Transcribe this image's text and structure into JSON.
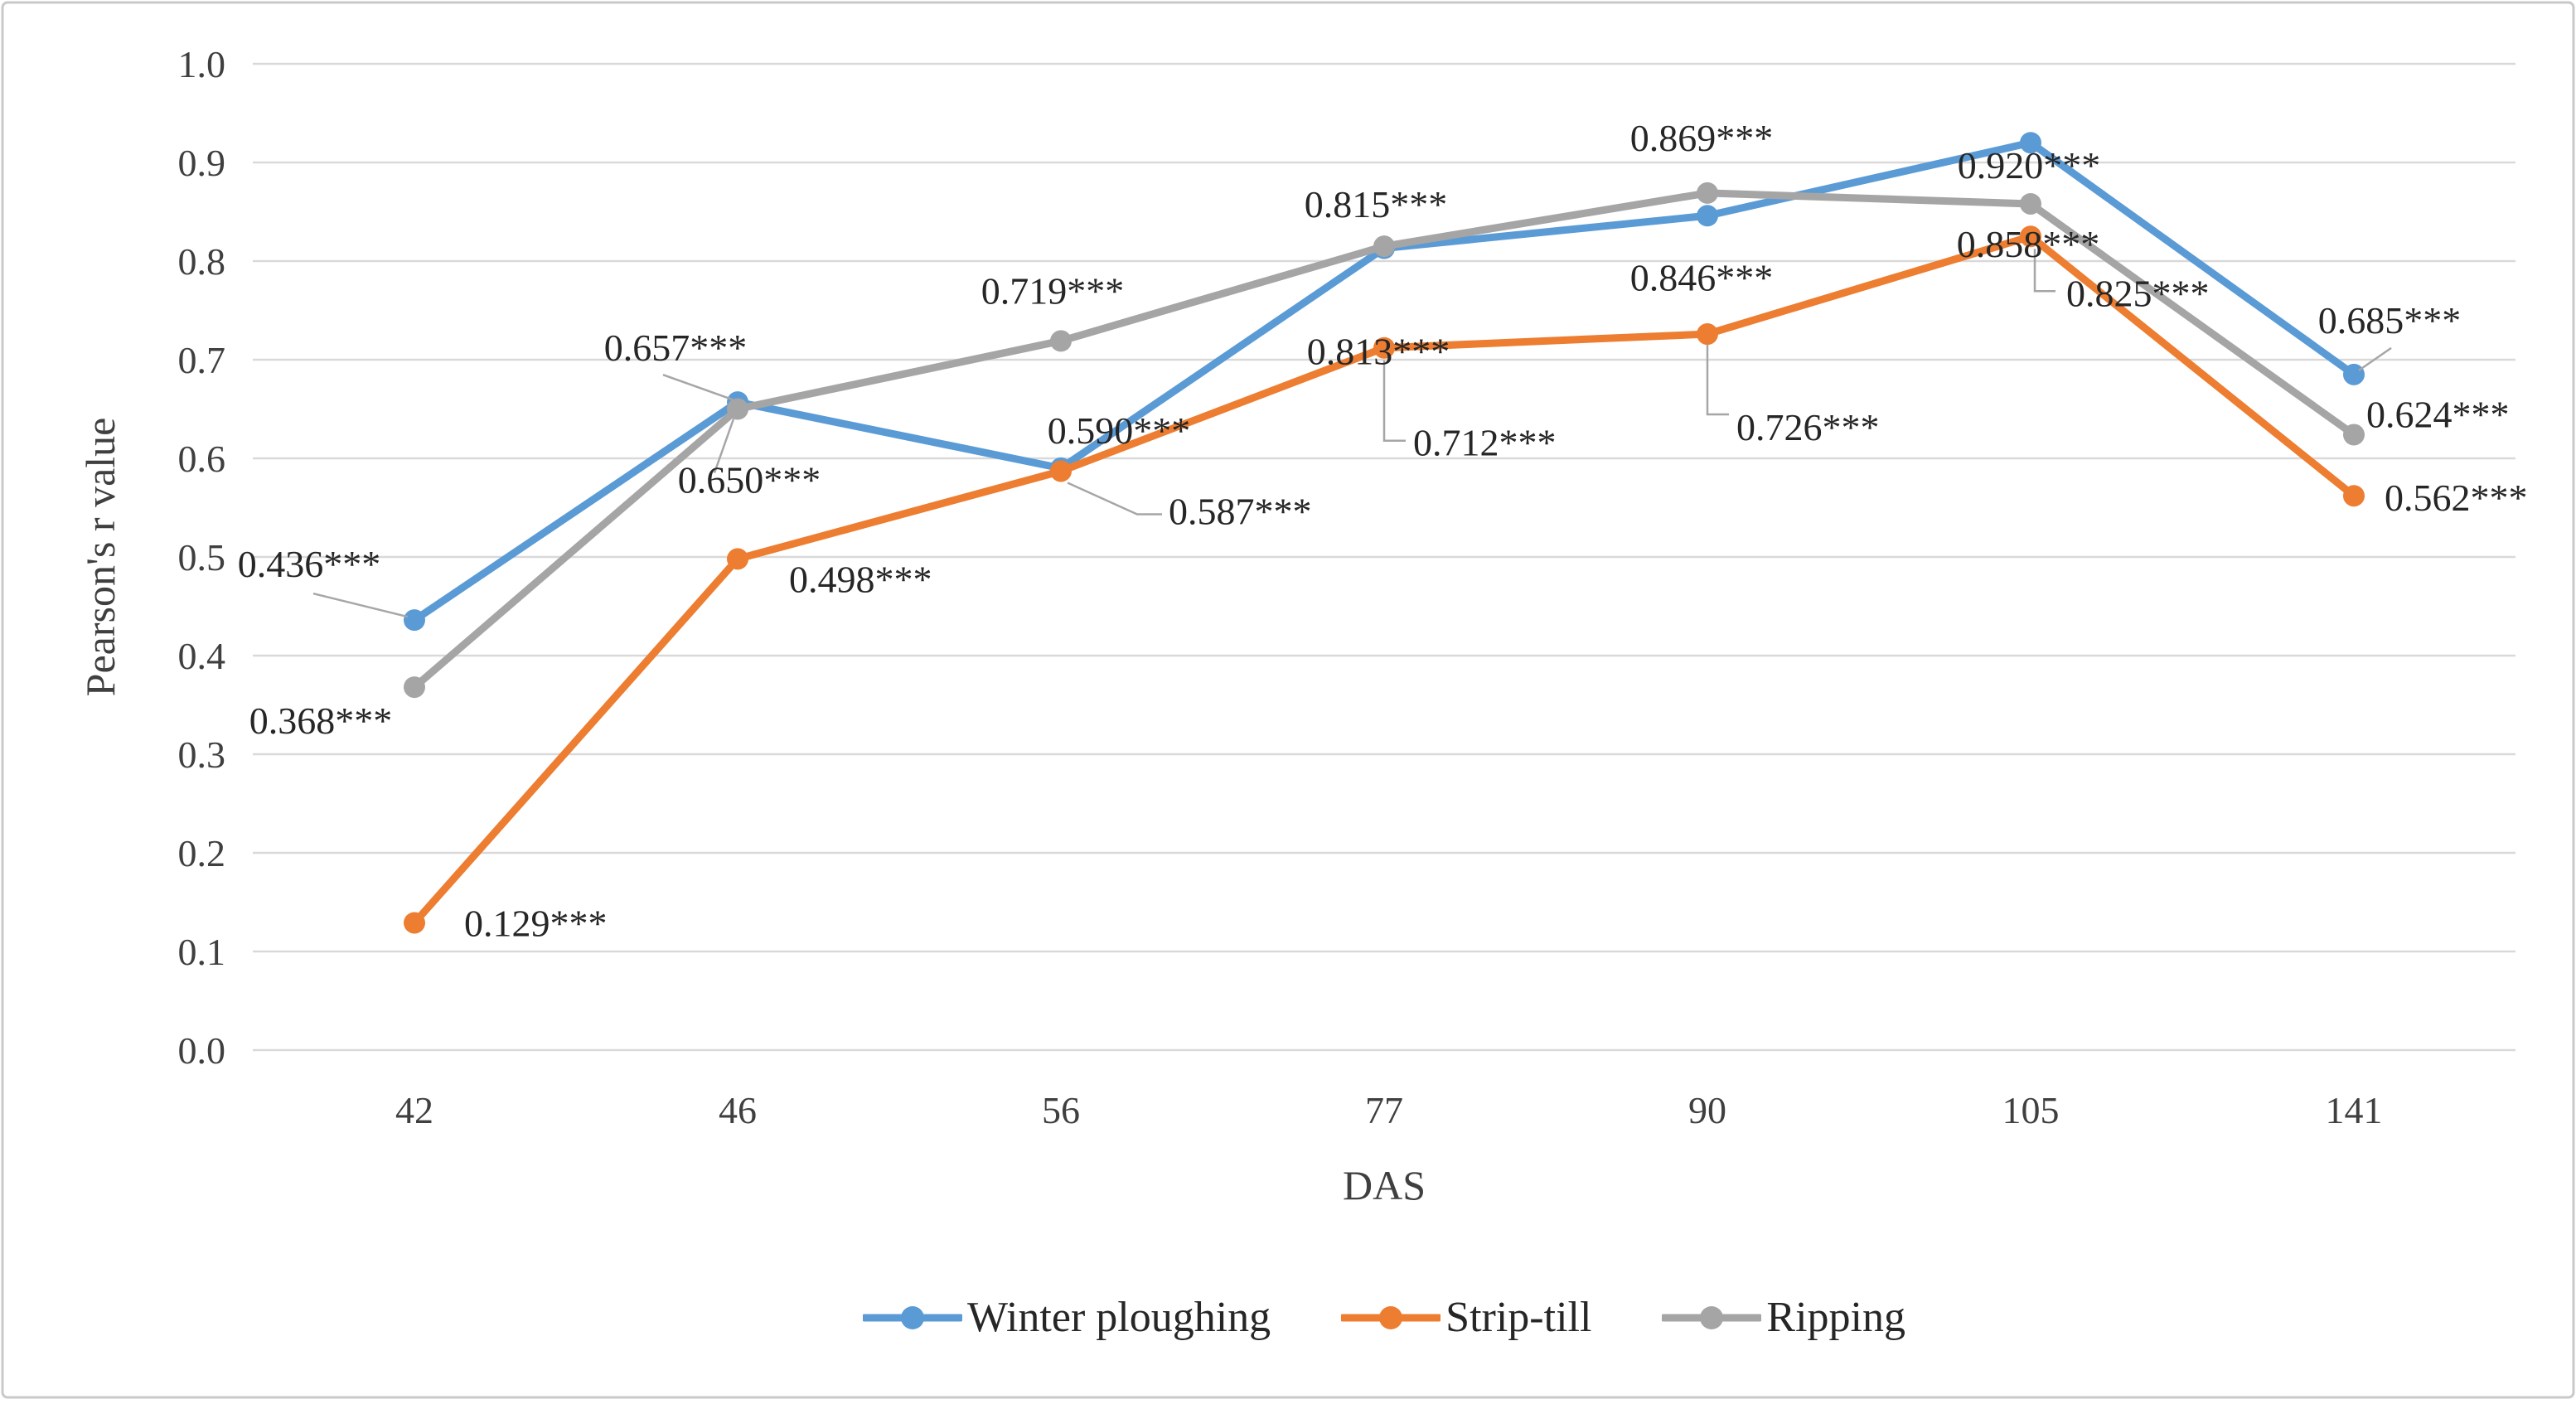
{
  "chart_data": {
    "type": "line",
    "x_categories": [
      "42",
      "46",
      "56",
      "77",
      "90",
      "105",
      "141"
    ],
    "xlabel": "DAS",
    "ylabel": "Pearson's r value",
    "ylim": [
      0.0,
      1.0
    ],
    "y_tick_labels": [
      "0.0",
      "0.1",
      "0.2",
      "0.3",
      "0.4",
      "0.5",
      "0.6",
      "0.7",
      "0.8",
      "0.9",
      "1.0"
    ],
    "grid": "horizontal",
    "legend_position": "bottom-center",
    "significance_suffix": "***",
    "series": [
      {
        "name": "Winter ploughing",
        "color": "#5B9BD5",
        "values": [
          0.436,
          0.657,
          0.59,
          0.813,
          0.846,
          0.92,
          0.685
        ],
        "point_labels": [
          "0.436***",
          "0.657***",
          "0.590***",
          "0.813***",
          "0.846***",
          "0.920***",
          "0.685***"
        ]
      },
      {
        "name": "Strip-till",
        "color": "#ED7D31",
        "values": [
          0.129,
          0.498,
          0.587,
          0.712,
          0.726,
          0.825,
          0.562
        ],
        "point_labels": [
          "0.129***",
          "0.498***",
          "0.587***",
          "0.712***",
          "0.726***",
          "0.825***",
          "0.562***"
        ]
      },
      {
        "name": "Ripping",
        "color": "#A5A5A5",
        "values": [
          0.368,
          0.65,
          0.719,
          0.815,
          0.869,
          0.858,
          0.624
        ],
        "point_labels": [
          "0.368***",
          "0.650***",
          "0.719***",
          "0.815***",
          "0.869***",
          "0.858***",
          "0.624***"
        ]
      }
    ],
    "colors": {
      "grid": "#D9D9D9",
      "axis_text": "#3F3F3F",
      "label_text": "#262626",
      "leader": "#A6A6A6",
      "border": "#C9C9C9",
      "background": "#FFFFFF"
    }
  }
}
